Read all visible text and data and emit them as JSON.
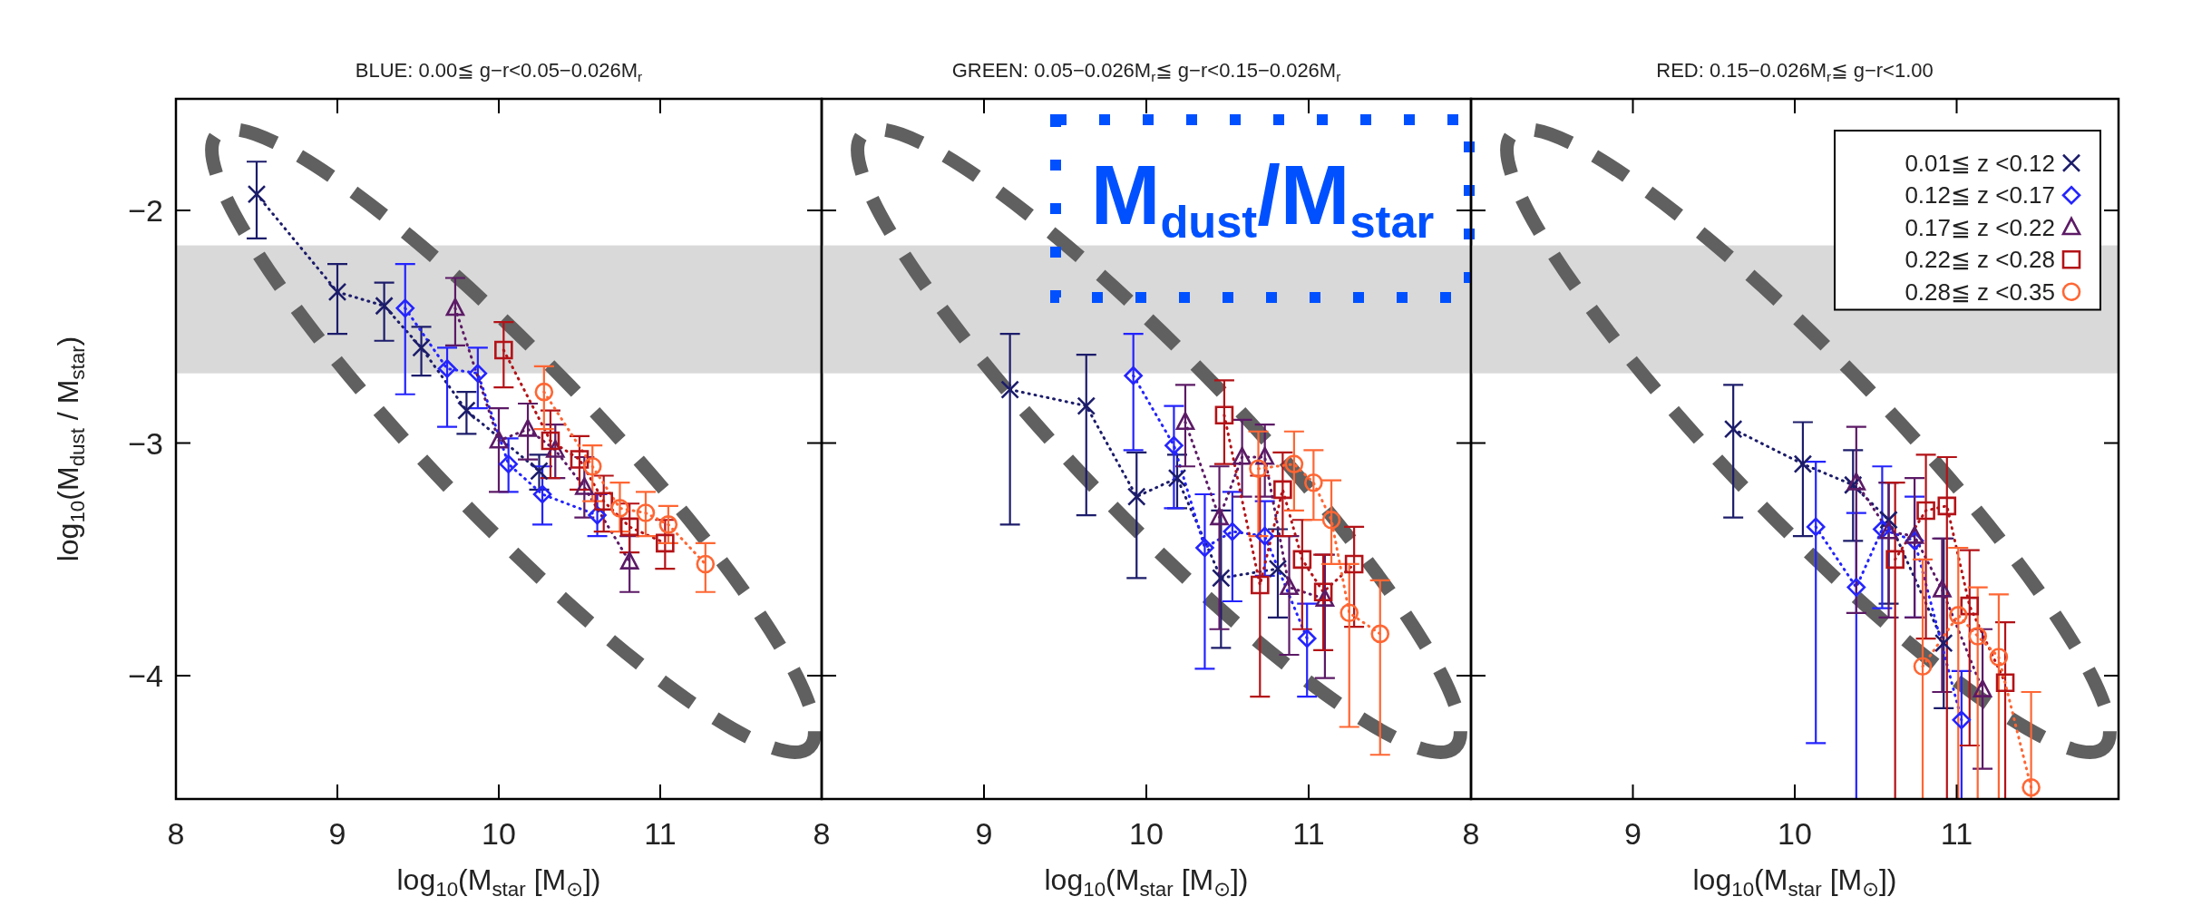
{
  "chart_data": [
    {
      "type": "line",
      "title": "BLUE: 0.00≦ g−r<0.05−0.026M$_{r}$",
      "xlabel": "log$_{10}$(M$_{star}$ [M$_{⊙}$])",
      "ylabel": "log$_{10}$(M$_{dust}$ / M$_{star}$)",
      "xlim": [
        8,
        12
      ],
      "ylim": [
        -4.53,
        -1.52
      ],
      "xticks": [
        8,
        9,
        10,
        11
      ],
      "yticks": [
        -4,
        -3,
        -2
      ],
      "line_style": "dotted",
      "legend": false,
      "bands": [
        {
          "axis": "y",
          "from": -2.7,
          "to": -2.15,
          "color": "#d9d9d9"
        }
      ],
      "series": [
        {
          "color": "#1c1c6b",
          "marker": "cross",
          "x": [
            8.5,
            9.0,
            9.29,
            9.52,
            9.8,
            10.25
          ],
          "values": [
            -1.93,
            -2.35,
            -2.41,
            -2.59,
            -2.86,
            -3.12
          ],
          "errors": [
            [
              -2.12,
              -1.79
            ],
            [
              -2.53,
              -2.23
            ],
            [
              -2.56,
              -2.31
            ],
            [
              -2.71,
              -2.5
            ],
            [
              -2.96,
              -2.78
            ],
            [
              -3.2,
              -3.05
            ]
          ]
        },
        {
          "color": "#2424ff",
          "marker": "diamond",
          "x": [
            9.42,
            9.68,
            9.87,
            10.06,
            10.27,
            10.61
          ],
          "values": [
            -2.42,
            -2.68,
            -2.7,
            -3.09,
            -3.22,
            -3.31
          ],
          "errors": [
            [
              -2.79,
              -2.23
            ],
            [
              -2.93,
              -2.59
            ],
            [
              -2.85,
              -2.59
            ],
            [
              -3.21,
              -2.98
            ],
            [
              -3.35,
              -3.1
            ],
            [
              -3.4,
              -3.22
            ]
          ]
        },
        {
          "color": "#5c1a66",
          "marker": "triangle",
          "x": [
            9.73,
            10.0,
            10.18,
            10.35,
            10.53,
            10.81
          ],
          "values": [
            -2.42,
            -2.99,
            -2.94,
            -3.03,
            -3.19,
            -3.51
          ],
          "errors": [
            [
              -2.58,
              -2.29
            ],
            [
              -3.21,
              -2.85
            ],
            [
              -3.07,
              -2.83
            ],
            [
              -3.15,
              -2.92
            ],
            [
              -3.32,
              -3.06
            ],
            [
              -3.64,
              -3.4
            ]
          ]
        },
        {
          "color": "#b31217",
          "marker": "square",
          "x": [
            10.03,
            10.32,
            10.5,
            10.65,
            10.81,
            11.03
          ],
          "values": [
            -2.6,
            -2.99,
            -3.07,
            -3.25,
            -3.36,
            -3.43
          ],
          "errors": [
            [
              -2.76,
              -2.48
            ],
            [
              -3.15,
              -2.86
            ],
            [
              -3.2,
              -2.97
            ],
            [
              -3.38,
              -3.14
            ],
            [
              -3.47,
              -3.26
            ],
            [
              -3.54,
              -3.33
            ]
          ]
        },
        {
          "color": "#ff6633",
          "marker": "circle",
          "x": [
            10.28,
            10.58,
            10.75,
            10.91,
            11.05,
            11.28
          ],
          "values": [
            -2.78,
            -3.1,
            -3.28,
            -3.3,
            -3.35,
            -3.52
          ],
          "errors": [
            [
              -2.94,
              -2.67
            ],
            [
              -3.25,
              -3.01
            ],
            [
              -3.38,
              -3.17
            ],
            [
              -3.4,
              -3.21
            ],
            [
              -3.43,
              -3.27
            ],
            [
              -3.64,
              -3.43
            ]
          ]
        }
      ]
    },
    {
      "type": "line",
      "title": "GREEN: 0.05−0.026M$_{r}$≦ g−r<0.15−0.026M$_{r}$",
      "xlabel": "log$_{10}$(M$_{star}$ [M$_{⊙}$])",
      "xlim": [
        8,
        12
      ],
      "ylim": [
        -4.53,
        -1.52
      ],
      "xticks": [
        8,
        9,
        10,
        11
      ],
      "yticks": [
        -4,
        -3,
        -2
      ],
      "tick_labels": "x",
      "line_style": "dotted",
      "legend": false,
      "annotations": [
        "M$_{dust}$/M$_{star}$"
      ],
      "bands": [
        {
          "axis": "y",
          "from": -2.7,
          "to": -2.15,
          "color": "#d9d9d9"
        }
      ],
      "series": [
        {
          "color": "#1c1c6b",
          "marker": "cross",
          "x": [
            9.16,
            9.63,
            9.94,
            10.19,
            10.46,
            10.81
          ],
          "values": [
            -2.77,
            -2.84,
            -3.23,
            -3.15,
            -3.58,
            -3.54
          ],
          "errors": [
            [
              -3.35,
              -2.53
            ],
            [
              -3.31,
              -2.62
            ],
            [
              -3.58,
              -3.04
            ],
            [
              -3.28,
              -3.05
            ],
            [
              -3.88,
              -3.29
            ],
            [
              -3.75,
              -3.37
            ]
          ]
        },
        {
          "color": "#2424ff",
          "marker": "diamond",
          "x": [
            9.92,
            10.17,
            10.36,
            10.53,
            10.73,
            10.99
          ],
          "values": [
            -2.71,
            -3.01,
            -3.45,
            -3.38,
            -3.4,
            -3.84
          ],
          "errors": [
            [
              -3.03,
              -2.53
            ],
            [
              -3.28,
              -2.84
            ],
            [
              -3.97,
              -3.22
            ],
            [
              -3.68,
              -3.21
            ],
            [
              -3.57,
              -3.25
            ],
            [
              -4.09,
              -3.69
            ]
          ]
        },
        {
          "color": "#5c1a66",
          "marker": "triangle",
          "x": [
            10.24,
            10.45,
            10.59,
            10.73,
            10.88,
            11.1
          ],
          "values": [
            -2.91,
            -3.32,
            -3.06,
            -3.06,
            -3.62,
            -3.67
          ],
          "errors": [
            [
              -3.1,
              -2.75
            ],
            [
              -3.8,
              -3.1
            ],
            [
              -3.23,
              -2.9
            ],
            [
              -3.23,
              -2.92
            ],
            [
              -3.91,
              -3.4
            ],
            [
              -4.01,
              -3.48
            ]
          ]
        },
        {
          "color": "#b31217",
          "marker": "square",
          "x": [
            10.48,
            10.7,
            10.84,
            10.96,
            11.09,
            11.28
          ],
          "values": [
            -2.88,
            -3.61,
            -3.2,
            -3.5,
            -3.64,
            -3.52
          ],
          "errors": [
            [
              -3.09,
              -2.73
            ],
            [
              -4.09,
              -3.14
            ],
            [
              -3.4,
              -3.04
            ],
            [
              -3.8,
              -3.33
            ],
            [
              -3.89,
              -3.48
            ],
            [
              -3.79,
              -3.36
            ]
          ]
        },
        {
          "color": "#ff6633",
          "marker": "circle",
          "x": [
            10.69,
            10.91,
            11.03,
            11.14,
            11.25,
            11.44
          ],
          "values": [
            -3.11,
            -3.09,
            -3.17,
            -3.33,
            -3.73,
            -3.82
          ],
          "errors": [
            [
              -3.4,
              -2.95
            ],
            [
              -3.29,
              -2.95
            ],
            [
              -3.33,
              -3.03
            ],
            [
              -3.52,
              -3.16
            ],
            [
              -4.22,
              -3.52
            ],
            [
              -4.34,
              -3.59
            ]
          ]
        }
      ]
    },
    {
      "type": "line",
      "title": "RED: 0.15−0.026M$_{r}$≦ g−r<1.00",
      "xlabel": "log$_{10}$(M$_{star}$ [M$_{⊙}$])",
      "xlim": [
        8,
        12
      ],
      "ylim": [
        -4.53,
        -1.52
      ],
      "xticks": [
        8,
        9,
        10,
        11
      ],
      "yticks": [
        -4,
        -3,
        -2
      ],
      "tick_labels": "x",
      "line_style": "dotted",
      "legend": "top right",
      "bands": [
        {
          "axis": "y",
          "from": -2.7,
          "to": -2.15,
          "color": "#d9d9d9"
        }
      ],
      "series": [
        {
          "name": "0.01≦ z <0.12",
          "color": "#1c1c6b",
          "marker": "cross",
          "x": [
            9.62,
            10.05,
            10.36,
            10.58,
            10.92
          ],
          "values": [
            -2.94,
            -3.09,
            -3.18,
            -3.33,
            -3.86
          ],
          "errors": [
            [
              -3.32,
              -2.75
            ],
            [
              -3.4,
              -2.91
            ],
            [
              -3.42,
              -3.03
            ],
            [
              -3.69,
              -3.17
            ],
            [
              -4.14,
              -3.41
            ]
          ]
        },
        {
          "name": "0.12≦ z <0.17",
          "color": "#2424ff",
          "marker": "diamond",
          "x": [
            10.13,
            10.38,
            10.54,
            10.74,
            11.03
          ],
          "values": [
            -3.36,
            -3.62,
            -3.37,
            -3.42,
            -4.19
          ],
          "errors": [
            [
              -4.29,
              -3.08
            ],
            [
              -4.53,
              -3.3
            ],
            [
              -3.71,
              -3.1
            ],
            [
              -3.75,
              -3.23
            ],
            [
              -4.53,
              -3.98
            ]
          ]
        },
        {
          "name": "0.17≦ z <0.22",
          "color": "#5c1a66",
          "marker": "triangle",
          "x": [
            10.38,
            10.58,
            10.74,
            10.91,
            11.16
          ],
          "values": [
            -3.17,
            -3.38,
            -3.4,
            -3.63,
            -4.06
          ],
          "errors": [
            [
              -3.73,
              -2.93
            ],
            [
              -3.75,
              -3.17
            ],
            [
              -3.75,
              -3.15
            ],
            [
              -4.07,
              -3.41
            ],
            [
              -4.4,
              -3.8
            ]
          ]
        },
        {
          "name": "0.22≦ z <0.28",
          "color": "#b31217",
          "marker": "square",
          "x": [
            10.62,
            10.81,
            10.94,
            11.08,
            11.3
          ],
          "values": [
            -3.5,
            -3.29,
            -3.27,
            -3.7,
            -4.03
          ],
          "errors": [
            [
              -4.53,
              -3.17
            ],
            [
              -3.84,
              -3.05
            ],
            [
              -4.53,
              -3.06
            ],
            [
              -4.3,
              -3.46
            ],
            [
              -4.53,
              -3.77
            ]
          ]
        },
        {
          "name": "0.28≦ z <0.35",
          "color": "#ff6633",
          "marker": "circle",
          "x": [
            10.79,
            11.01,
            11.13,
            11.26,
            11.46
          ],
          "values": [
            -3.96,
            -3.74,
            -3.83,
            -3.92,
            -4.48
          ],
          "errors": [
            [
              -4.53,
              -3.5
            ],
            [
              -4.53,
              -3.45
            ],
            [
              -4.53,
              -3.62
            ],
            [
              -4.53,
              -3.65
            ],
            [
              -4.53,
              -4.07
            ]
          ]
        }
      ]
    }
  ]
}
